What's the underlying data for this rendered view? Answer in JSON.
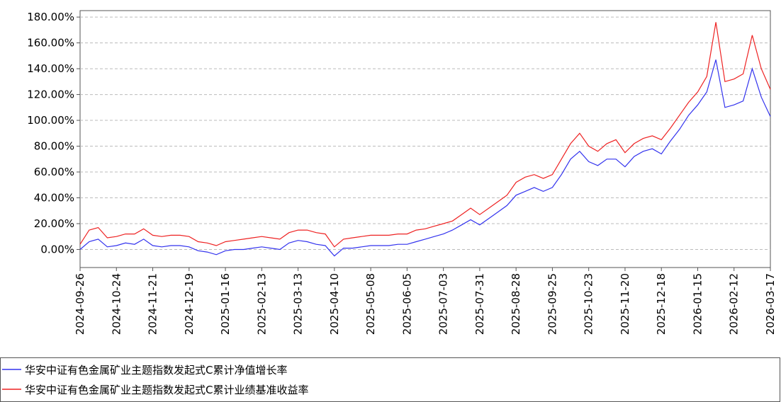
{
  "chart_data": {
    "type": "line",
    "categories": [
      "2024-09-26",
      null,
      null,
      null,
      "2024-10-24",
      null,
      null,
      null,
      "2024-11-21",
      null,
      null,
      null,
      "2024-12-19",
      null,
      null,
      null,
      "2025-01-16",
      null,
      null,
      null,
      "2025-02-13",
      null,
      null,
      null,
      "2025-03-13",
      null,
      null,
      null,
      "2025-04-10",
      null,
      null,
      null,
      "2025-05-08",
      null,
      null,
      null,
      "2025-06-05",
      null,
      null,
      null,
      "2025-07-03",
      null,
      null,
      null,
      "2025-07-31",
      null,
      null,
      null,
      "2025-08-28",
      null,
      null,
      null,
      "2025-09-25",
      null,
      null,
      null,
      "2025-10-23",
      null,
      null,
      null,
      "2025-11-20",
      null,
      null,
      null,
      "2025-12-18",
      null,
      null,
      null,
      "2026-01-15",
      null,
      null,
      null,
      "2026-02-12",
      null,
      null,
      null,
      "2026-03-17"
    ],
    "series": [
      {
        "name": "华安中证有色金属矿业主题指数发起式C累计净值增长率",
        "color": "#3333ee",
        "values": [
          0,
          6,
          8,
          2,
          3,
          5,
          4,
          8,
          3,
          2,
          3,
          3,
          2,
          -1,
          -2,
          -4,
          -1,
          0,
          0,
          1,
          2,
          1,
          0,
          5,
          7,
          6,
          4,
          3,
          -5,
          1,
          1,
          2,
          3,
          3,
          3,
          4,
          4,
          6,
          8,
          10,
          12,
          15,
          19,
          23,
          19,
          24,
          29,
          34,
          42,
          45,
          48,
          45,
          48,
          58,
          70,
          76,
          68,
          65,
          70,
          70,
          64,
          72,
          76,
          78,
          74,
          84,
          93,
          104,
          112,
          122,
          147,
          110,
          112,
          115,
          140,
          118,
          103
        ]
      },
      {
        "name": "华安中证有色金属矿业主题指数发起式C累计业绩基准收益率",
        "color": "#ee2222",
        "values": [
          4,
          15,
          17,
          9,
          10,
          12,
          12,
          16,
          11,
          10,
          11,
          11,
          10,
          6,
          5,
          3,
          6,
          7,
          8,
          9,
          10,
          9,
          8,
          13,
          15,
          15,
          13,
          12,
          2,
          8,
          9,
          10,
          11,
          11,
          11,
          12,
          12,
          15,
          16,
          18,
          20,
          22,
          27,
          32,
          27,
          32,
          37,
          42,
          52,
          56,
          58,
          55,
          58,
          70,
          82,
          90,
          80,
          76,
          82,
          85,
          75,
          82,
          86,
          88,
          85,
          94,
          104,
          114,
          122,
          134,
          176,
          130,
          132,
          136,
          166,
          140,
          124
        ]
      }
    ],
    "ylim": [
      -14,
      185
    ],
    "yticks": [
      {
        "value": 0,
        "label": "0.00%"
      },
      {
        "value": 20,
        "label": "20.00%"
      },
      {
        "value": 40,
        "label": "40.00%"
      },
      {
        "value": 60,
        "label": "60.00%"
      },
      {
        "value": 80,
        "label": "80.00%"
      },
      {
        "value": 100,
        "label": "100.00%"
      },
      {
        "value": 120,
        "label": "120.00%"
      },
      {
        "value": 140,
        "label": "140.00%"
      },
      {
        "value": 160,
        "label": "160.00%"
      },
      {
        "value": 180,
        "label": "180.00%"
      }
    ],
    "grid": true
  }
}
